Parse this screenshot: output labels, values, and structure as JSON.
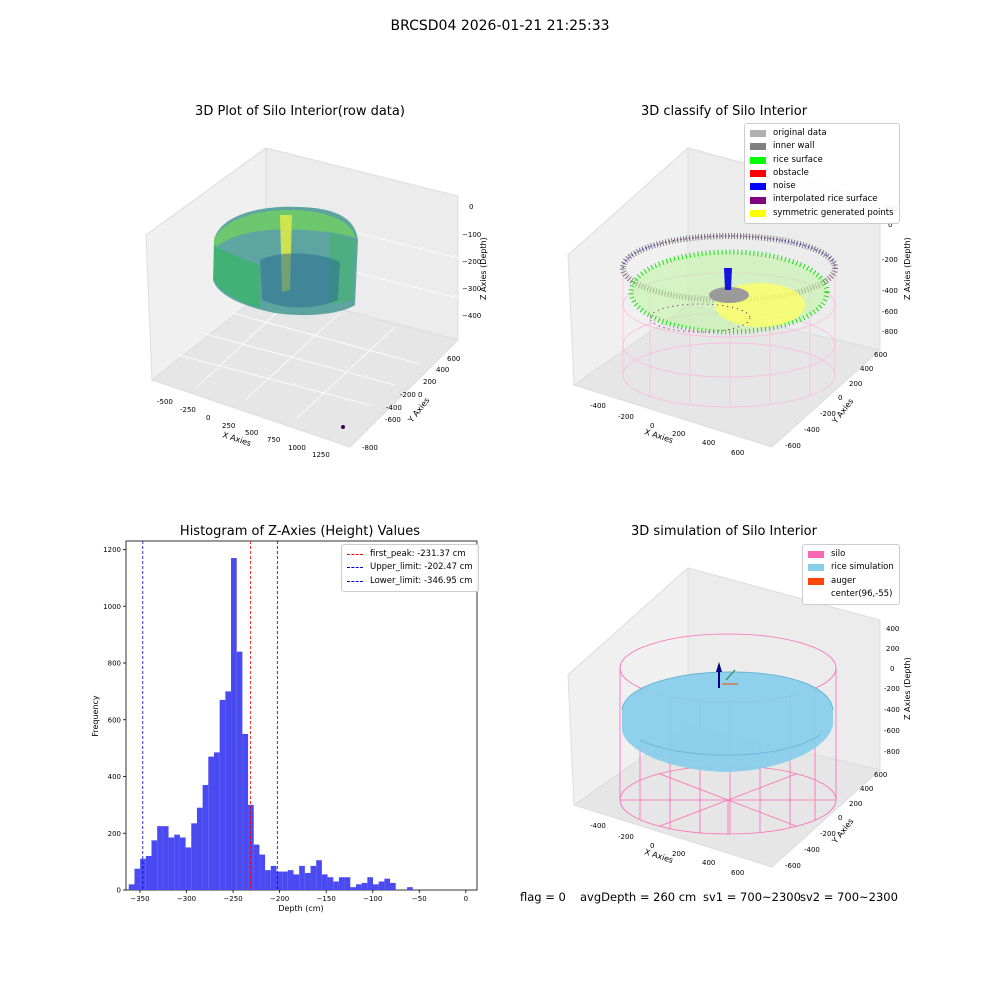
{
  "figure_title": "BRCSD04 2026-01-21 21:25:33",
  "footer": {
    "flag": "flag = 0",
    "avg": "avgDepth = 260 cm",
    "sv1": "sv1 = 700~2300",
    "sv2": "sv2 = 700~2300"
  },
  "colors": {
    "hist_bar": "#4a4af2",
    "first_peak": "#ff0000",
    "limits": "#0000cc",
    "silo": "#ff69b4",
    "rice_sim": "#87ceeb",
    "auger": "#ff4500"
  },
  "chart_data": [
    {
      "type": "scatter",
      "title": "3D Plot of Silo Interior(row data)",
      "xlabel": "X Axies",
      "ylabel": "Y Axies",
      "zlabel": "Z Axies (Depth)",
      "x_ticks": [
        "-500",
        "-250",
        "0",
        "250",
        "500",
        "750",
        "1000",
        "1250"
      ],
      "y_ticks": [
        "-800",
        "-600",
        "-400",
        "-200",
        "0",
        "200",
        "400",
        "600"
      ],
      "z_ticks": [
        "0",
        "−100",
        "−200",
        "−300",
        "−400"
      ]
    },
    {
      "type": "scatter",
      "title": "3D classify of Silo Interior",
      "xlabel": "X Axies",
      "ylabel": "Y Axies",
      "zlabel": "Z Axies (Depth)",
      "x_ticks": [
        "-400",
        "-200",
        "0",
        "200",
        "400",
        "600"
      ],
      "y_ticks": [
        "-600",
        "-400",
        "-200",
        "0",
        "200",
        "400",
        "600"
      ],
      "z_ticks": [
        "200",
        "0",
        "-200",
        "-400",
        "-600",
        "-800"
      ],
      "legend": [
        {
          "label": "original data",
          "color": "#b0b0b0"
        },
        {
          "label": "inner wall",
          "color": "#808080"
        },
        {
          "label": "rice surface",
          "color": "#00ff00"
        },
        {
          "label": "obstacle",
          "color": "#ff0000"
        },
        {
          "label": "noise",
          "color": "#0000ff"
        },
        {
          "label": "interpolated rice surface",
          "color": "#800080"
        },
        {
          "label": "symmetric generated points",
          "color": "#ffff00"
        }
      ]
    },
    {
      "type": "bar",
      "title": "Histogram of Z-Axies (Height) Values",
      "xlabel": "Depth (cm)",
      "ylabel": "Frequency",
      "xlim": [
        -365,
        12
      ],
      "ylim": [
        0,
        1230
      ],
      "x_ticks": [
        -350,
        -300,
        -250,
        -200,
        -150,
        -100,
        -50,
        0
      ],
      "y_ticks": [
        0,
        200,
        400,
        600,
        800,
        1000,
        1200
      ],
      "bin_width": 6.1,
      "bins_start": -362,
      "values": [
        20,
        75,
        110,
        120,
        175,
        225,
        225,
        185,
        195,
        185,
        150,
        235,
        290,
        370,
        470,
        485,
        670,
        700,
        1170,
        840,
        550,
        300,
        160,
        125,
        70,
        85,
        65,
        65,
        70,
        55,
        85,
        60,
        85,
        105,
        55,
        45,
        30,
        45,
        45,
        10,
        20,
        25,
        45,
        20,
        30,
        40,
        25,
        0,
        0,
        10
      ],
      "lines": [
        {
          "label": "first_peak: -231.37 cm",
          "x": -231.37,
          "color": "#ff0000"
        },
        {
          "label": "Upper_limit: -202.47 cm",
          "x": -202.47,
          "color": "#0000cc"
        },
        {
          "label": "Lower_limit: -346.95 cm",
          "x": -346.95,
          "color": "#0000cc"
        }
      ]
    },
    {
      "type": "scatter",
      "title": "3D simulation of Silo Interior",
      "xlabel": "X Axies",
      "ylabel": "Y Axies",
      "zlabel": "Z Axies (Depth)",
      "x_ticks": [
        "-400",
        "-200",
        "0",
        "200",
        "400",
        "600"
      ],
      "y_ticks": [
        "-600",
        "-400",
        "-200",
        "0",
        "200",
        "400",
        "600"
      ],
      "z_ticks": [
        "400",
        "200",
        "0",
        "-200",
        "-400",
        "-600",
        "-800"
      ],
      "legend": [
        {
          "label": "silo",
          "color": "#ff69b4"
        },
        {
          "label": "rice simulation",
          "color": "#87ceeb"
        },
        {
          "label": "auger",
          "color": "#ff4500"
        },
        {
          "label": "center(96,-55)",
          "color": ""
        }
      ]
    }
  ]
}
